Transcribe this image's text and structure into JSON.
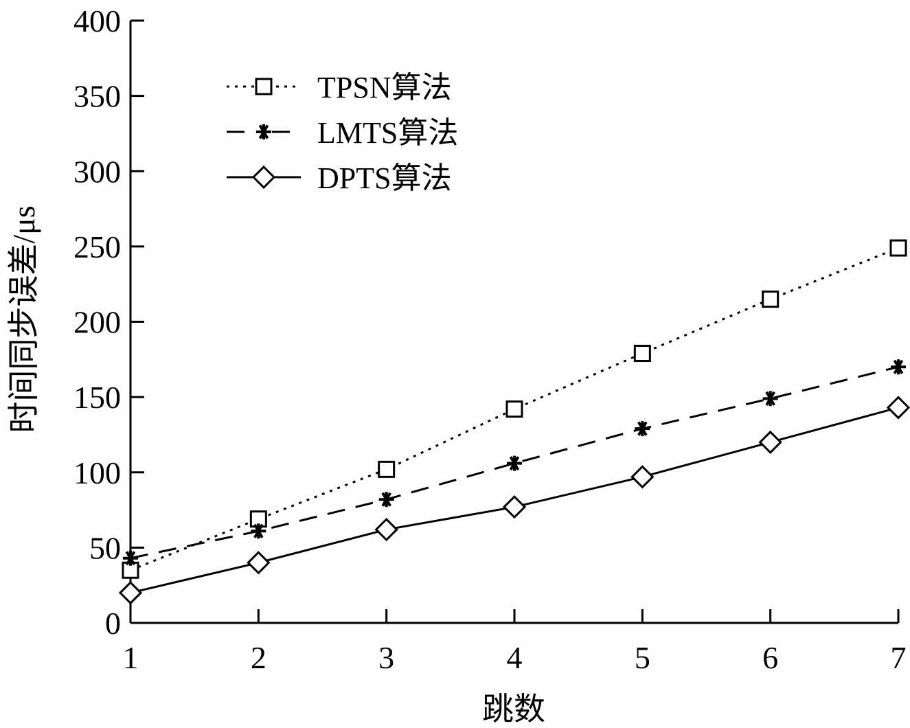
{
  "chart_data": {
    "type": "line",
    "xlabel": "跳数",
    "ylabel": "时间同步误差/μs",
    "x": [
      1,
      2,
      3,
      4,
      5,
      6,
      7
    ],
    "xticks": [
      "1",
      "2",
      "3",
      "4",
      "5",
      "6",
      "7"
    ],
    "yticks": [
      "0",
      "50",
      "100",
      "150",
      "200",
      "250",
      "300",
      "350",
      "400"
    ],
    "xlim": [
      1,
      7
    ],
    "ylim": [
      0,
      400
    ],
    "grid": false,
    "legend_position": "top-left",
    "series": [
      {
        "name": "TPSN算法",
        "marker": "square",
        "line": "dotted",
        "color": "#000000",
        "values": [
          35,
          69,
          102,
          142,
          179,
          215,
          249
        ]
      },
      {
        "name": "LMTS算法",
        "marker": "asterisk",
        "line": "dashed",
        "color": "#000000",
        "values": [
          43,
          61,
          82,
          106,
          129,
          149,
          170
        ]
      },
      {
        "name": "DPTS算法",
        "marker": "diamond",
        "line": "solid",
        "color": "#000000",
        "values": [
          20,
          40,
          62,
          77,
          97,
          120,
          143
        ]
      }
    ]
  }
}
